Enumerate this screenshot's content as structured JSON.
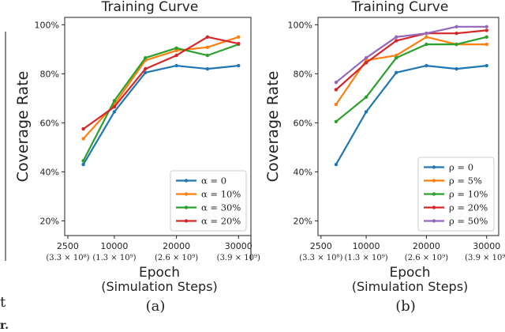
{
  "fragments": {
    "left_t": "t",
    "bottom_mark": "r."
  },
  "legend_prefix": {
    "alpha": "α = ",
    "rho": "ρ = "
  },
  "colors": {
    "blue": "#1f77b4",
    "orange": "#ff7f0e",
    "green": "#2ca02c",
    "red": "#d62728",
    "purple": "#9467bd"
  },
  "chart_data": [
    {
      "type": "line",
      "title": "Training Curve",
      "xlabel": "Epoch",
      "xlabel2": "(Simulation Steps)",
      "ylabel": "Coverage Rate",
      "panel_label": "(a)",
      "legend_symbol": "α",
      "legend_position": "bottom-right",
      "xlim": [
        2000,
        32000
      ],
      "ylim": [
        0.14,
        1.03
      ],
      "xticks": [
        {
          "value": 2500,
          "label": "2500",
          "sub": "(3.3 × 10⁸)"
        },
        {
          "value": 10000,
          "label": "10000",
          "sub": "(1.3 × 10⁹)"
        },
        {
          "value": 20000,
          "label": "20000",
          "sub": "(2.6 × 10⁹)"
        },
        {
          "value": 30000,
          "label": "30000",
          "sub": "(3.9 × 10⁹)"
        }
      ],
      "yticks": [
        {
          "value": 0.2,
          "label": "20%"
        },
        {
          "value": 0.4,
          "label": "40%"
        },
        {
          "value": 0.6,
          "label": "60%"
        },
        {
          "value": 0.8,
          "label": "80%"
        },
        {
          "value": 1.0,
          "label": "100%"
        }
      ],
      "x": [
        5000,
        10000,
        15000,
        20000,
        25000,
        30000
      ],
      "series": [
        {
          "name": "0",
          "color": "#1f77b4",
          "values": [
            0.43,
            0.645,
            0.805,
            0.833,
            0.82,
            0.833
          ]
        },
        {
          "name": "10%",
          "color": "#ff7f0e",
          "values": [
            0.535,
            0.675,
            0.855,
            0.895,
            0.908,
            0.95
          ]
        },
        {
          "name": "30%",
          "color": "#2ca02c",
          "values": [
            0.445,
            0.69,
            0.865,
            0.905,
            0.875,
            0.92
          ]
        },
        {
          "name": "20%",
          "color": "#d62728",
          "values": [
            0.575,
            0.665,
            0.82,
            0.875,
            0.95,
            0.923
          ]
        }
      ]
    },
    {
      "type": "line",
      "title": "Training Curve",
      "xlabel": "Epoch",
      "xlabel2": "(Simulation Steps)",
      "ylabel": "Coverage Rate",
      "panel_label": "(b)",
      "legend_symbol": "ρ",
      "legend_position": "bottom-right",
      "xlim": [
        2000,
        32000
      ],
      "ylim": [
        0.14,
        1.03
      ],
      "xticks": [
        {
          "value": 2500,
          "label": "2500",
          "sub": "(3.3 × 10⁸)"
        },
        {
          "value": 10000,
          "label": "10000",
          "sub": "(1.3 × 10⁹)"
        },
        {
          "value": 20000,
          "label": "20000",
          "sub": "(2.6 × 10⁹)"
        },
        {
          "value": 30000,
          "label": "30000",
          "sub": "(3.9 × 10⁹)"
        }
      ],
      "yticks": [
        {
          "value": 0.2,
          "label": "20%"
        },
        {
          "value": 0.4,
          "label": "40%"
        },
        {
          "value": 0.6,
          "label": "60%"
        },
        {
          "value": 0.8,
          "label": "80%"
        },
        {
          "value": 1.0,
          "label": "100%"
        }
      ],
      "x": [
        5000,
        10000,
        15000,
        20000,
        25000,
        30000
      ],
      "series": [
        {
          "name": "0",
          "color": "#1f77b4",
          "values": [
            0.43,
            0.645,
            0.805,
            0.833,
            0.82,
            0.833
          ]
        },
        {
          "name": "5%",
          "color": "#ff7f0e",
          "values": [
            0.675,
            0.855,
            0.875,
            0.95,
            0.92,
            0.92
          ]
        },
        {
          "name": "10%",
          "color": "#2ca02c",
          "values": [
            0.605,
            0.705,
            0.865,
            0.92,
            0.92,
            0.95
          ]
        },
        {
          "name": "20%",
          "color": "#d62728",
          "values": [
            0.735,
            0.845,
            0.935,
            0.965,
            0.965,
            0.977
          ]
        },
        {
          "name": "50%",
          "color": "#9467bd",
          "values": [
            0.765,
            0.865,
            0.95,
            0.965,
            0.992,
            0.992
          ]
        }
      ]
    }
  ]
}
